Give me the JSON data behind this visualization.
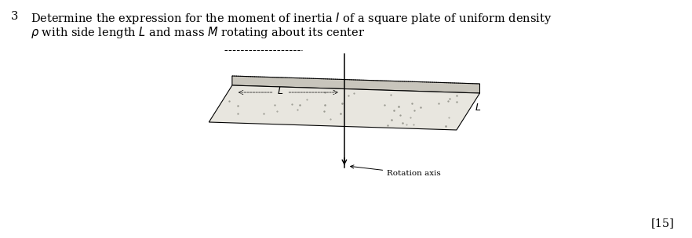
{
  "title_number": "3",
  "line1": "Determine the expression for the moment of inertia $I$ of a square plate of uniform density",
  "line2": "$\\rho$ with side length $L$ and mass $M$ rotating about its center",
  "rotation_axis_label": "Rotation axis",
  "label_L1": "$L$",
  "label_L2": "$L$",
  "marks": "[15]",
  "bg_color": "#ffffff",
  "text_color": "#000000",
  "font_size_main": 10.5,
  "font_size_small": 7.5,
  "plate_top_color": "#e8e6df",
  "plate_front_color": "#c8c5bc",
  "plate_left_color": "#d8d5cc",
  "plate_edge_color": "#000000"
}
